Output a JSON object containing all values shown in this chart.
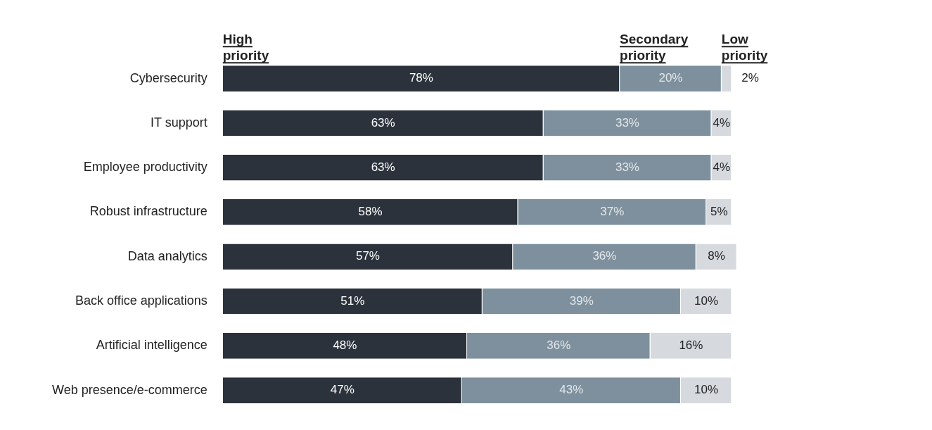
{
  "chart_data": {
    "type": "bar",
    "orientation": "horizontal",
    "stacked": true,
    "legend": false,
    "tick_labels": "y",
    "categories": [
      "Cybersecurity",
      "IT support",
      "Employee productivity",
      "Robust infrastructure",
      "Data analytics",
      "Back office applications",
      "Artificial intelligence",
      "Web presence/e-commerce"
    ],
    "series": [
      {
        "name": "High priority",
        "color": "#2b323b",
        "values": [
          78,
          63,
          63,
          58,
          57,
          51,
          48,
          47
        ],
        "value_labels": [
          "78%",
          "63%",
          "63%",
          "58%",
          "57%",
          "51%",
          "48%",
          "47%"
        ]
      },
      {
        "name": "Secondary priority",
        "color": "#7e909d",
        "values": [
          20,
          33,
          33,
          37,
          36,
          39,
          36,
          43
        ],
        "value_labels": [
          "20%",
          "33%",
          "33%",
          "37%",
          "36%",
          "39%",
          "36%",
          "43%"
        ]
      },
      {
        "name": "Low priority",
        "color": "#d6dadf",
        "values": [
          2,
          4,
          4,
          5,
          8,
          10,
          16,
          10
        ],
        "value_labels": [
          "2%",
          "4%",
          "4%",
          "5%",
          "8%",
          "10%",
          "16%",
          "10%"
        ]
      }
    ]
  }
}
